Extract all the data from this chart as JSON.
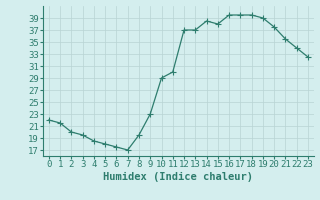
{
  "x": [
    0,
    1,
    2,
    3,
    4,
    5,
    6,
    7,
    8,
    9,
    10,
    11,
    12,
    13,
    14,
    15,
    16,
    17,
    18,
    19,
    20,
    21,
    22,
    23
  ],
  "y": [
    22,
    21.5,
    20,
    19.5,
    18.5,
    18,
    17.5,
    17,
    19.5,
    23,
    29,
    30,
    37,
    37,
    38.5,
    38,
    39.5,
    39.5,
    39.5,
    39,
    37.5,
    35.5,
    34,
    32.5
  ],
  "xlabel": "Humidex (Indice chaleur)",
  "xlim": [
    -0.5,
    23.5
  ],
  "ylim": [
    16,
    41
  ],
  "yticks": [
    17,
    19,
    21,
    23,
    25,
    27,
    29,
    31,
    33,
    35,
    37,
    39
  ],
  "xticks": [
    0,
    1,
    2,
    3,
    4,
    5,
    6,
    7,
    8,
    9,
    10,
    11,
    12,
    13,
    14,
    15,
    16,
    17,
    18,
    19,
    20,
    21,
    22,
    23
  ],
  "line_color": "#2e7d6e",
  "bg_color": "#d4eeee",
  "grid_color": "#b8d4d4",
  "xlabel_fontsize": 7.5,
  "tick_fontsize": 6.5,
  "marker_size": 2.0,
  "line_width": 0.9
}
